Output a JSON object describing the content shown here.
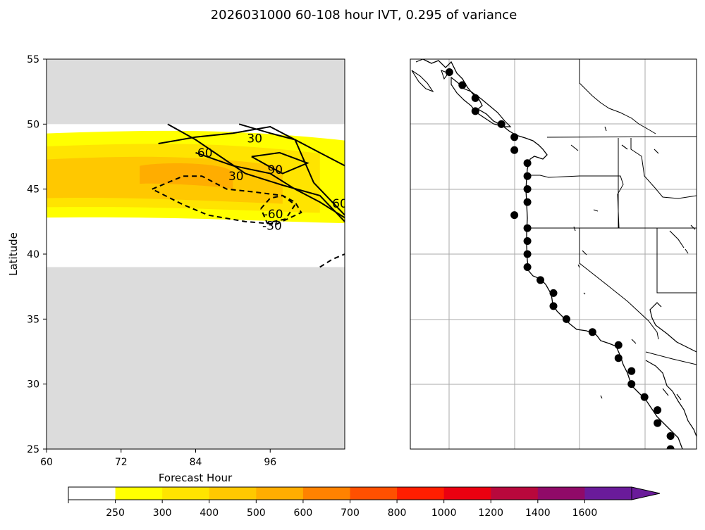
{
  "figure": {
    "title": "2026031000 60-108 hour IVT, 0.295 of variance"
  },
  "chart_data": [
    {
      "type": "heatmap",
      "panel": "hovmoller",
      "xlabel": "Forecast Hour",
      "ylabel": "Latitude",
      "xlim": [
        60,
        108
      ],
      "ylim": [
        25,
        55
      ],
      "xticks": [
        "60",
        "72",
        "84",
        "96"
      ],
      "yticks": [
        "25",
        "30",
        "35",
        "40",
        "45",
        "50",
        "55"
      ],
      "masked_fill": "#dcdcdc",
      "masked_ranges": [
        [
          25,
          39
        ],
        [
          50,
          55
        ]
      ],
      "filled_levels": [
        {
          "min": 250,
          "max": 300,
          "approx_lat_range": [
            42.7,
            49.5
          ],
          "hour_range": [
            60,
            108
          ]
        },
        {
          "min": 300,
          "max": 400,
          "approx_lat_range": [
            43.5,
            48.5
          ],
          "hour_range": [
            60,
            104
          ]
        },
        {
          "min": 400,
          "max": 500,
          "approx_lat_range": [
            44.2,
            47.5
          ],
          "hour_range": [
            60,
            98
          ]
        },
        {
          "min": 500,
          "max": 600,
          "approx_lat_range": [
            45.3,
            47.0
          ],
          "hour_range": [
            75,
            90
          ]
        }
      ],
      "contour_labels": [
        {
          "text": "30",
          "hour": 93.5,
          "lat": 48.9
        },
        {
          "text": "60",
          "hour": 85.5,
          "lat": 47.8
        },
        {
          "text": "30",
          "hour": 90.5,
          "lat": 46.0
        },
        {
          "text": "90",
          "hour": 96.8,
          "lat": 46.5
        },
        {
          "text": "-60",
          "hour": 96.5,
          "lat": 43.1
        },
        {
          "text": "-30",
          "hour": 96.3,
          "lat": 42.2
        },
        {
          "text": "60",
          "hour": 107.2,
          "lat": 43.9
        }
      ],
      "contours": [
        {
          "level": 30,
          "style": "solid",
          "points": [
            [
              91,
              50
            ],
            [
              96,
              49.3
            ],
            [
              100,
              48.8
            ],
            [
              104,
              47.8
            ],
            [
              108,
              46.8
            ]
          ]
        },
        {
          "level": 30,
          "style": "solid",
          "points": [
            [
              79.5,
              50
            ],
            [
              84,
              48.8
            ],
            [
              88,
              47.5
            ],
            [
              92,
              46.2
            ],
            [
              98,
              45.3
            ],
            [
              104,
              44.5
            ],
            [
              108,
              42.5
            ]
          ]
        },
        {
          "level": 60,
          "style": "solid",
          "points": [
            [
              78,
              48.5
            ],
            [
              84,
              49
            ],
            [
              90,
              49.3
            ],
            [
              96,
              49.8
            ],
            [
              100,
              48.8
            ],
            [
              103,
              45.5
            ],
            [
              106,
              44
            ],
            [
              108,
              43
            ]
          ]
        },
        {
          "level": 60,
          "style": "solid",
          "points": [
            [
              84,
              47.8
            ],
            [
              90,
              46.8
            ],
            [
              96,
              46.2
            ],
            [
              100,
              45.0
            ],
            [
              104,
              44.0
            ],
            [
              108,
              42.8
            ]
          ]
        },
        {
          "level": 90,
          "style": "solid",
          "points": [
            [
              93,
              47.5
            ],
            [
              96,
              46.7
            ],
            [
              98,
              46.2
            ],
            [
              102,
              47.0
            ],
            [
              97.5,
              47.8
            ],
            [
              93,
              47.5
            ]
          ]
        },
        {
          "level": -30,
          "style": "dashed",
          "points": [
            [
              77,
              45
            ],
            [
              82,
              46
            ],
            [
              85,
              46
            ],
            [
              89,
              45
            ],
            [
              93,
              44.8
            ],
            [
              98,
              44.5
            ],
            [
              100,
              44
            ],
            [
              101,
              43.2
            ],
            [
              97,
              42.3
            ],
            [
              92,
              42.5
            ],
            [
              86,
              43
            ],
            [
              82,
              43.8
            ],
            [
              77,
              45
            ]
          ]
        },
        {
          "level": -60,
          "style": "dashed",
          "points": [
            [
              94.5,
              43.5
            ],
            [
              96,
              44.3
            ],
            [
              98,
              44.5
            ],
            [
              100,
              43.8
            ],
            [
              98.5,
              42.7
            ],
            [
              95.5,
              42.4
            ],
            [
              94.5,
              43.5
            ]
          ]
        },
        {
          "level": -30,
          "style": "dashed",
          "points": [
            [
              104,
              39
            ],
            [
              106,
              39.6
            ],
            [
              108,
              40.0
            ]
          ]
        }
      ]
    },
    {
      "type": "scatter",
      "panel": "map",
      "region": "US West Coast",
      "lon_range": [
        -134,
        -112
      ],
      "lat_range": [
        25,
        55
      ],
      "points_lonlat": [
        [
          -131,
          54
        ],
        [
          -130,
          53
        ],
        [
          -129,
          52
        ],
        [
          -129,
          51
        ],
        [
          -127,
          50
        ],
        [
          -126,
          49
        ],
        [
          -126,
          48
        ],
        [
          -125,
          47
        ],
        [
          -125,
          46
        ],
        [
          -125,
          45
        ],
        [
          -125,
          44
        ],
        [
          -126,
          43
        ],
        [
          -125,
          42
        ],
        [
          -125,
          41
        ],
        [
          -125,
          40
        ],
        [
          -125,
          39
        ],
        [
          -124,
          38
        ],
        [
          -123,
          37
        ],
        [
          -123,
          36
        ],
        [
          -122,
          35
        ],
        [
          -120,
          34
        ],
        [
          -118,
          33
        ],
        [
          -118,
          32
        ],
        [
          -117,
          31
        ],
        [
          -117,
          30
        ],
        [
          -116,
          29
        ],
        [
          -115,
          28
        ],
        [
          -115,
          27
        ],
        [
          -114,
          26
        ],
        [
          -114,
          25
        ]
      ]
    },
    {
      "type": "colorbar",
      "ticks": [
        "250",
        "300",
        "400",
        "500",
        "600",
        "700",
        "800",
        "1000",
        "1200",
        "1400",
        "1600"
      ],
      "colors": [
        "#ffffff",
        "#ffff00",
        "#ffe400",
        "#ffc800",
        "#ffad00",
        "#ff8200",
        "#ff5000",
        "#ff1e00",
        "#eb0010",
        "#b8083c",
        "#900a68",
        "#6a1b9a"
      ],
      "extend": "max"
    }
  ]
}
